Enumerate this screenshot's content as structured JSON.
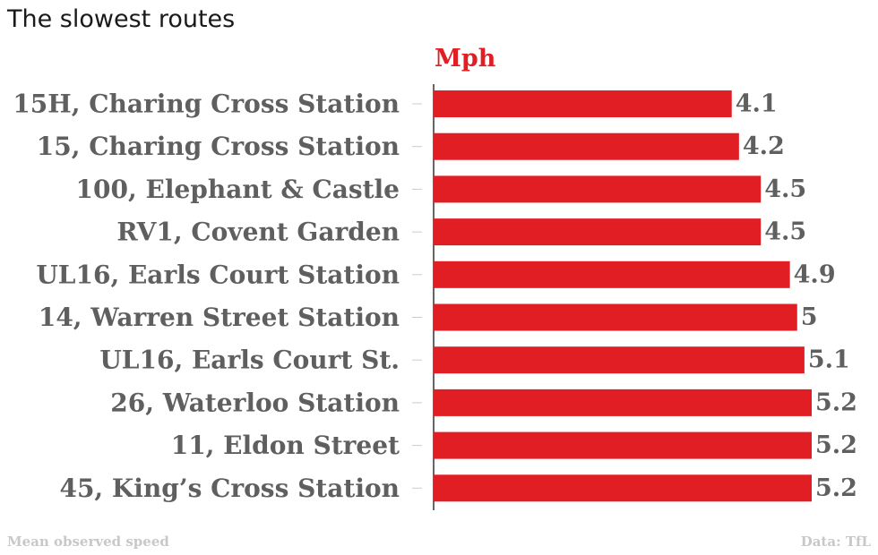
{
  "chart_data": {
    "type": "bar",
    "orientation": "horizontal",
    "title": "The slowest routes",
    "unit_label": "Mph",
    "categories": [
      "15H, Charing Cross Station",
      "15, Charing Cross Station",
      "100, Elephant & Castle",
      "RV1, Covent Garden",
      "UL16, Earls Court Station",
      "14, Warren Street Station",
      "UL16, Earls Court St.",
      "26, Waterloo Station",
      "11, Eldon Street",
      "45, King’s Cross Station"
    ],
    "values": [
      4.1,
      4.2,
      4.5,
      4.5,
      4.9,
      5,
      5.1,
      5.2,
      5.2,
      5.2
    ],
    "value_labels": [
      "4.1",
      "4.2",
      "4.5",
      "4.5",
      "4.9",
      "5",
      "5.1",
      "5.2",
      "5.2",
      "5.2"
    ],
    "bar_color": "#e01e24",
    "xlim": [
      0,
      5.2
    ],
    "grid": false,
    "footnote": "Mean observed speed",
    "source": "Data: TfL"
  }
}
